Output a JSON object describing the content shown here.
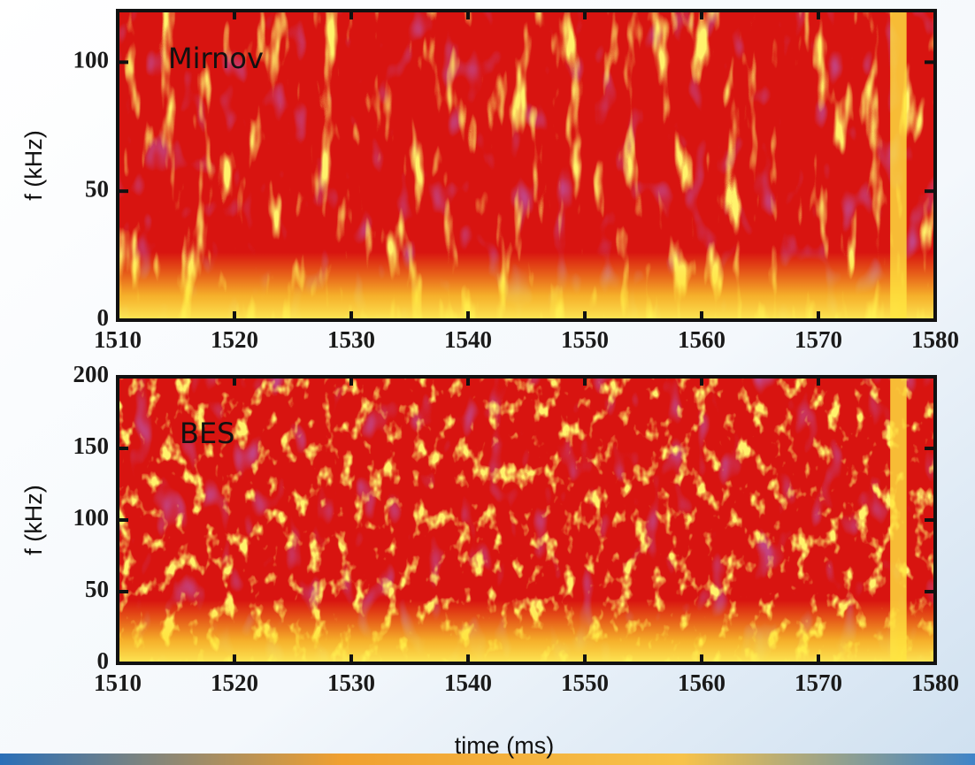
{
  "chart_data": [
    {
      "type": "spectrogram",
      "annotation": "Mirnov",
      "ylabel": "f (kHz)",
      "xlim": [
        1510,
        1580
      ],
      "xticks": [
        1510,
        1520,
        1530,
        1540,
        1550,
        1560,
        1570,
        1580
      ],
      "ylim": [
        0,
        120
      ],
      "yticks": [
        0,
        50,
        100
      ]
    },
    {
      "type": "spectrogram",
      "annotation": "BES",
      "ylabel": "f (kHz)",
      "xlabel": "time (ms)",
      "xlim": [
        1510,
        1580
      ],
      "xticks": [
        1510,
        1520,
        1530,
        1540,
        1550,
        1560,
        1570,
        1580
      ],
      "ylim": [
        0,
        200
      ],
      "yticks": [
        0,
        50,
        100,
        150,
        200
      ]
    }
  ]
}
